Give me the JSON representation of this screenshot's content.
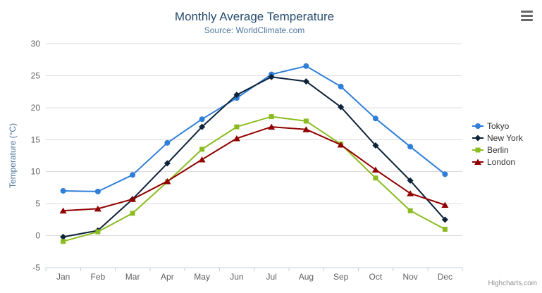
{
  "credits": {
    "label": "Highcharts.com"
  },
  "export_button": {
    "icon": "hamburger-icon"
  },
  "chart_data": {
    "type": "line",
    "title": "Monthly Average Temperature",
    "subtitle": "Source: WorldClimate.com",
    "xlabel": "",
    "ylabel": "Temperature (°C)",
    "ylim": [
      -5,
      30
    ],
    "yticks": [
      -5,
      0,
      5,
      10,
      15,
      20,
      25,
      30
    ],
    "grid": true,
    "legend_position": "right",
    "categories": [
      "Jan",
      "Feb",
      "Mar",
      "Apr",
      "May",
      "Jun",
      "Jul",
      "Aug",
      "Sep",
      "Oct",
      "Nov",
      "Dec"
    ],
    "series": [
      {
        "name": "Tokyo",
        "marker": "circle",
        "color": "#2f7ed8",
        "values": [
          7.0,
          6.9,
          9.5,
          14.5,
          18.2,
          21.5,
          25.2,
          26.5,
          23.3,
          18.3,
          13.9,
          9.6
        ]
      },
      {
        "name": "New York",
        "marker": "diamond",
        "color": "#0d233a",
        "values": [
          -0.2,
          0.8,
          5.7,
          11.3,
          17.0,
          22.0,
          24.8,
          24.1,
          20.1,
          14.1,
          8.6,
          2.5
        ]
      },
      {
        "name": "Berlin",
        "marker": "square",
        "color": "#8bbc21",
        "values": [
          -0.9,
          0.6,
          3.5,
          8.4,
          13.5,
          17.0,
          18.6,
          17.9,
          14.3,
          9.0,
          3.9,
          1.0
        ]
      },
      {
        "name": "London",
        "marker": "triangle",
        "color": "#910000",
        "values": [
          3.9,
          4.2,
          5.7,
          8.5,
          11.9,
          15.2,
          17.0,
          16.6,
          14.2,
          10.3,
          6.6,
          4.8
        ]
      }
    ],
    "style": {
      "title_color": "#274b6d",
      "subtitle_color": "#4d759e",
      "axis_title_color": "#4d759e",
      "axis_label_color": "#606060",
      "legend_text_color": "#333333",
      "grid_color": "#dcdcdc",
      "axis_line_color": "#c0d0e0",
      "credits_color": "#909090"
    }
  }
}
